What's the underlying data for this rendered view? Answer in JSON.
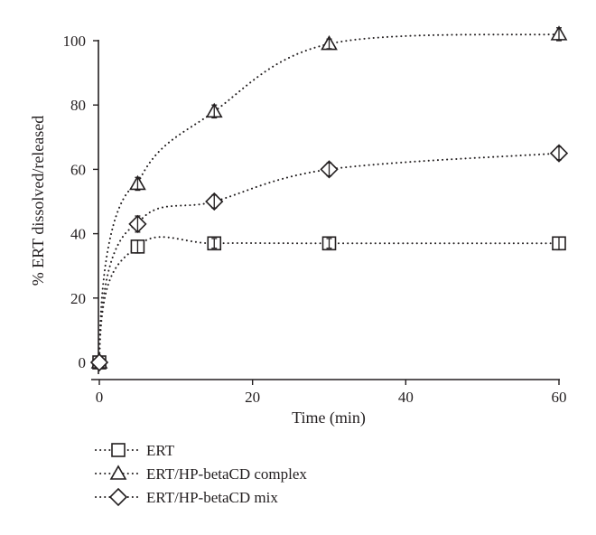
{
  "chart_data": {
    "type": "scatter",
    "xlabel": "Time (min)",
    "ylabel": "% ERT dissolved/released",
    "xlim": [
      0,
      60
    ],
    "ylim": [
      0,
      100
    ],
    "xticks": [
      0,
      20,
      40,
      60
    ],
    "yticks": [
      0,
      20,
      40,
      60,
      80,
      100
    ],
    "grid": false,
    "legend_position": "bottom-left",
    "line_style": "dotted smooth curve",
    "series": [
      {
        "name": "ERT",
        "marker": "square",
        "x": [
          0,
          5,
          15,
          30,
          60
        ],
        "y": [
          0,
          36,
          37,
          37,
          37
        ],
        "error": [
          0,
          2,
          1.5,
          1.5,
          2
        ]
      },
      {
        "name": "ERT/HP-betaCD complex",
        "marker": "triangle",
        "x": [
          0,
          5,
          15,
          30,
          60
        ],
        "y": [
          0,
          55.5,
          78,
          99,
          102
        ],
        "error": [
          0,
          2,
          2,
          1.5,
          2
        ]
      },
      {
        "name": "ERT/HP-betaCD mix",
        "marker": "diamond",
        "x": [
          0,
          5,
          15,
          30,
          60
        ],
        "y": [
          0,
          43,
          50,
          60,
          65
        ],
        "error": [
          0,
          2.5,
          2,
          2,
          2
        ]
      }
    ]
  }
}
